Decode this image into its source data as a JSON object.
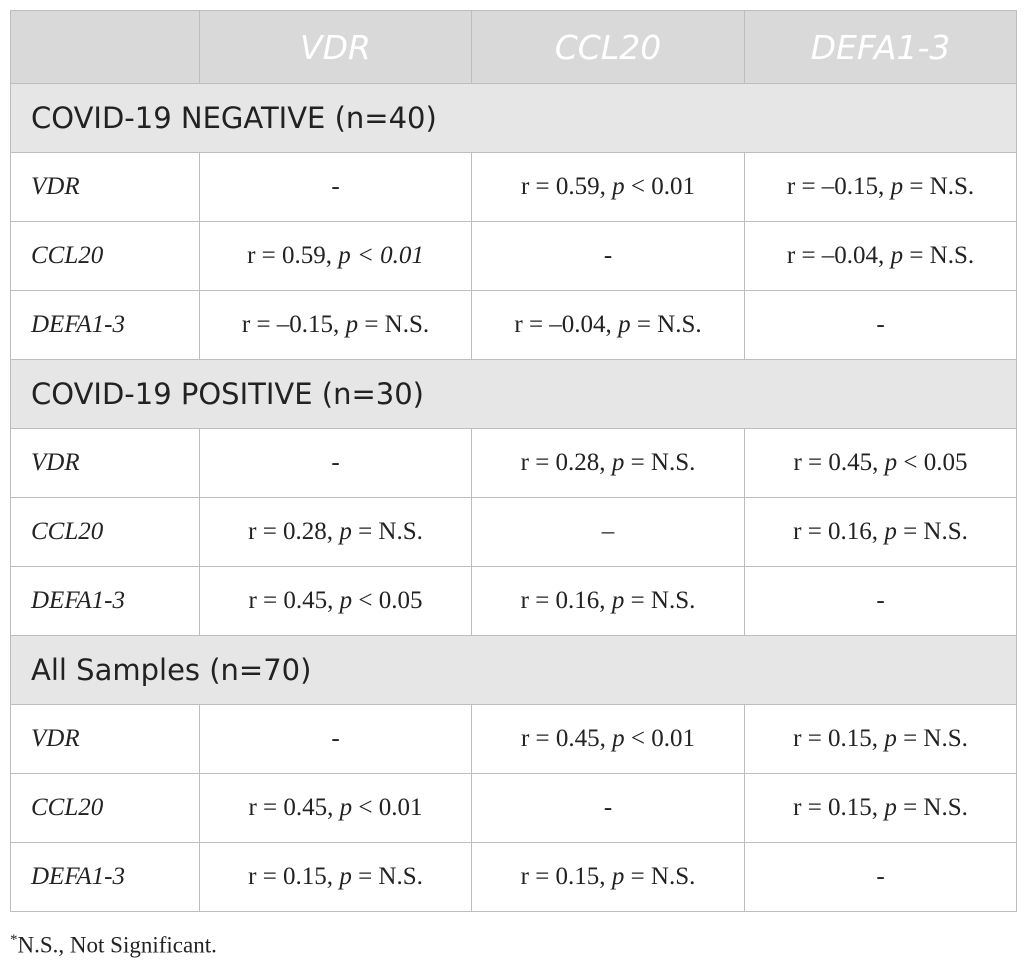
{
  "columns": [
    "",
    "VDR",
    "CCL20",
    "DEFA1-3"
  ],
  "groups": [
    {
      "title": "COVID-19 NEGATIVE (n=40)",
      "rows": [
        {
          "label": "VDR",
          "cells": [
            {
              "dash": "-"
            },
            {
              "r": "r = 0.59, ",
              "p": "p",
              "rest": " < 0.01"
            },
            {
              "r": "r = –0.15, ",
              "p": "p",
              "rest": " = N.S."
            }
          ]
        },
        {
          "label": "CCL20",
          "cells": [
            {
              "r": "r = 0.59, ",
              "p": "p",
              "rest": " < 0.01",
              "rest_italic": true
            },
            {
              "dash": "-"
            },
            {
              "r": "r = –0.04, ",
              "p": "p",
              "rest": " = N.S."
            }
          ]
        },
        {
          "label": "DEFA1-3",
          "cells": [
            {
              "r": "r = –0.15, ",
              "p": "p",
              "rest": " = N.S."
            },
            {
              "r": "r = –0.04, ",
              "p": "p",
              "rest": " = N.S."
            },
            {
              "dash": "-"
            }
          ]
        }
      ]
    },
    {
      "title": "COVID-19 POSITIVE (n=30)",
      "rows": [
        {
          "label": "VDR",
          "cells": [
            {
              "dash": "-"
            },
            {
              "r": "r = 0.28, ",
              "p": "p",
              "rest": " = N.S."
            },
            {
              "r": "r = 0.45, ",
              "p": "p",
              "rest": " < 0.05"
            }
          ]
        },
        {
          "label": "CCL20",
          "cells": [
            {
              "r": "r = 0.28, ",
              "p": "p",
              "rest": " = N.S."
            },
            {
              "dash": "–"
            },
            {
              "r": "r = 0.16, ",
              "p": "p",
              "rest": " = N.S."
            }
          ]
        },
        {
          "label": "DEFA1-3",
          "cells": [
            {
              "r": "r = 0.45, ",
              "p": "p",
              "rest": " < 0.05"
            },
            {
              "r": "r = 0.16, ",
              "p": "p",
              "rest": " = N.S."
            },
            {
              "dash": "-"
            }
          ]
        }
      ]
    },
    {
      "title": "All Samples (n=70)",
      "rows": [
        {
          "label": "VDR",
          "cells": [
            {
              "dash": "-"
            },
            {
              "r": "r = 0.45, ",
              "p": "p",
              "rest": " < 0.01"
            },
            {
              "r": "r = 0.15, ",
              "p": "p",
              "rest": " = N.S."
            }
          ]
        },
        {
          "label": "CCL20",
          "cells": [
            {
              "r": "r = 0.45, ",
              "p": "p",
              "rest": " < 0.01"
            },
            {
              "dash": "-"
            },
            {
              "r": "r = 0.15, ",
              "p": "p",
              "rest": " = N.S."
            }
          ]
        },
        {
          "label": "DEFA1-3",
          "cells": [
            {
              "r": "r = 0.15, ",
              "p": "p",
              "rest": " = N.S."
            },
            {
              "r": "r = 0.15, ",
              "p": "p",
              "rest": " = N.S."
            },
            {
              "dash": "-"
            }
          ]
        }
      ]
    }
  ],
  "footnote": {
    "marker": "*",
    "text": "N.S., Not Significant."
  }
}
